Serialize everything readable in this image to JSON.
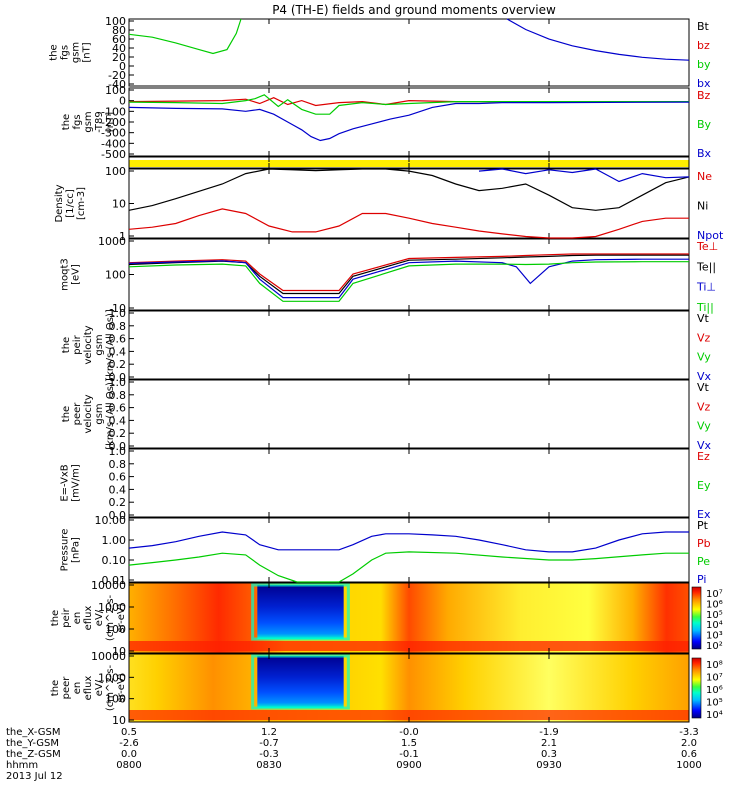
{
  "title": "P4 (TH-E) fields and ground moments overview",
  "colors": {
    "black": "#000000",
    "red": "#dd0000",
    "green": "#00cc00",
    "blue": "#0000cc",
    "yellow": "#ffee00"
  },
  "x_axis": {
    "labels": [
      "the_X-GSM",
      "the_Y-GSM",
      "the_Z-GSM",
      "hhmm"
    ],
    "date": "2013 Jul 12",
    "ticks": [
      {
        "t": 0,
        "x": "0.5",
        "y": "-2.6",
        "z": "0.0",
        "hhmm": "0800"
      },
      {
        "t": 30,
        "x": "1.2",
        "y": "-0.7",
        "z": "-0.3",
        "hhmm": "0830"
      },
      {
        "t": 60,
        "x": "-0.0",
        "y": "1.5",
        "z": "-0.1",
        "hhmm": "0900"
      },
      {
        "t": 90,
        "x": "-1.9",
        "y": "2.1",
        "z": "0.3",
        "hhmm": "0930"
      },
      {
        "t": 120,
        "x": "-3.3",
        "y": "2.0",
        "z": "0.6",
        "hhmm": "1000"
      }
    ]
  },
  "panels": [
    {
      "id": "fgs",
      "ylabel": [
        "the",
        "fgs",
        "gsm",
        "[nT]"
      ],
      "ticks": [
        "100",
        "80",
        "60",
        "40",
        "20",
        "0",
        "-20",
        "-40"
      ],
      "legend": [
        {
          "text": "Bt",
          "color": "black"
        },
        {
          "text": "bz",
          "color": "red"
        },
        {
          "text": "by",
          "color": "green"
        },
        {
          "text": "bx",
          "color": "blue"
        }
      ]
    },
    {
      "id": "fgl",
      "ylabel": [
        "the",
        "fgs",
        "gsm",
        "-T89",
        "[nT]"
      ],
      "ticks": [
        "100",
        "0",
        "-100",
        "-200",
        "-300",
        "-400",
        "-500"
      ],
      "legend": [
        {
          "text": "Bz",
          "color": "red"
        },
        {
          "text": "By",
          "color": "green"
        },
        {
          "text": "Bx",
          "color": "blue"
        }
      ]
    },
    {
      "id": "bar",
      "ylabel": [],
      "ticks": [],
      "legend": []
    },
    {
      "id": "density",
      "ylabel": [
        "Density",
        "[1/cc]",
        "[cm-3]"
      ],
      "ticks": [
        "100",
        "10",
        "1"
      ],
      "legend": [
        {
          "text": "Ne",
          "color": "red"
        },
        {
          "text": "Ni",
          "color": "black"
        },
        {
          "text": "Npot",
          "color": "blue"
        }
      ]
    },
    {
      "id": "temp",
      "ylabel": [
        "moqt3",
        "[eV]"
      ],
      "ticks": [
        "1000",
        "100",
        "10"
      ],
      "legend": [
        {
          "text": "Te⊥",
          "color": "red"
        },
        {
          "text": "Te||",
          "color": "black"
        },
        {
          "text": "Ti⊥",
          "color": "blue"
        },
        {
          "text": "Ti||",
          "color": "green"
        }
      ]
    },
    {
      "id": "vpeir",
      "ylabel": [
        "the",
        "peir",
        "velocity",
        "gsm",
        "[km/s (All Qs)]"
      ],
      "ticks": [
        "1.0",
        "0.8",
        "0.6",
        "0.4",
        "0.2",
        "0.0"
      ],
      "legend": [
        {
          "text": "Vt",
          "color": "black"
        },
        {
          "text": "Vz",
          "color": "red"
        },
        {
          "text": "Vy",
          "color": "green"
        },
        {
          "text": "Vx",
          "color": "blue"
        }
      ]
    },
    {
      "id": "vpeer",
      "ylabel": [
        "the",
        "peer",
        "velocity",
        "gsm",
        "[km/s (All Qs)]"
      ],
      "ticks": [
        "1.0",
        "0.8",
        "0.6",
        "0.4",
        "0.2",
        "0.0"
      ],
      "legend": [
        {
          "text": "Vt",
          "color": "black"
        },
        {
          "text": "Vz",
          "color": "red"
        },
        {
          "text": "Vy",
          "color": "green"
        },
        {
          "text": "Vx",
          "color": "blue"
        }
      ]
    },
    {
      "id": "efield",
      "ylabel": [
        "E=-VxB",
        "[mV/m]"
      ],
      "ticks": [
        "1.0",
        "0.8",
        "0.6",
        "0.4",
        "0.2",
        "0.0"
      ],
      "legend": [
        {
          "text": "Ez",
          "color": "red"
        },
        {
          "text": "Ey",
          "color": "green"
        },
        {
          "text": "Ex",
          "color": "blue"
        }
      ]
    },
    {
      "id": "pressure",
      "ylabel": [
        "Pressure",
        "[nPa]"
      ],
      "ticks": [
        "10.00",
        "1.00",
        "0.10",
        "0.01"
      ],
      "legend": [
        {
          "text": "Pt",
          "color": "black"
        },
        {
          "text": "Pb",
          "color": "red"
        },
        {
          "text": "Pe",
          "color": "green"
        },
        {
          "text": "Pi",
          "color": "blue"
        }
      ]
    },
    {
      "id": "peir_spec",
      "ylabel": [
        "the",
        "peir",
        "en",
        "eflux",
        "eV/",
        "(cm^2-s-",
        "sr-eV)"
      ],
      "ticks": [
        "10000",
        "1000",
        "100",
        "10"
      ],
      "colorbar": [
        "10⁷",
        "10⁶",
        "10⁵",
        "10⁴",
        "10³",
        "10²"
      ]
    },
    {
      "id": "peer_spec",
      "ylabel": [
        "the",
        "peer",
        "en",
        "eflux",
        "eV/",
        "(cm^2-s-",
        "sr-eV)"
      ],
      "ticks": [
        "10000",
        "1000",
        "100",
        "10"
      ],
      "colorbar": [
        "10⁸",
        "10⁷",
        "10⁶",
        "10⁵",
        "10⁴"
      ]
    }
  ],
  "chart_data": {
    "type": "line",
    "title": "P4 (TH-E) fields and ground moments overview",
    "x_unit": "minutes after 0800 UT, 2013 Jul 12",
    "x_ticks": [
      "0800",
      "0830",
      "0900",
      "0930",
      "1000"
    ],
    "panels": {
      "fgs": {
        "ylim": [
          -40,
          100
        ],
        "series": [
          {
            "name": "by",
            "color": "green",
            "x": [
              0,
              5,
              10,
              15,
              18,
              21,
              23,
              24
            ],
            "y": [
              68,
              62,
              50,
              36,
              28,
              36,
              70,
              100
            ]
          },
          {
            "name": "bx",
            "color": "blue",
            "x": [
              81,
              85,
              90,
              95,
              100,
              105,
              110,
              115,
              120
            ],
            "y": [
              100,
              78,
              58,
              44,
              34,
              26,
              20,
              16,
              14
            ]
          }
        ]
      },
      "fgl": {
        "ylim": [
          -560,
          140
        ],
        "series": [
          {
            "name": "Bz",
            "color": "red",
            "x": [
              0,
              10,
              20,
              25,
              28,
              31,
              34,
              37,
              40,
              45,
              50,
              55,
              60,
              70,
              90,
              120
            ],
            "y": [
              0,
              5,
              10,
              25,
              -20,
              40,
              -30,
              10,
              -40,
              -10,
              0,
              -30,
              10,
              0,
              0,
              0
            ]
          },
          {
            "name": "By",
            "color": "green",
            "x": [
              0,
              10,
              20,
              25,
              27,
              29,
              32,
              34,
              37,
              40,
              43,
              45,
              50,
              55,
              60,
              70,
              90,
              120
            ],
            "y": [
              -5,
              -10,
              -20,
              10,
              30,
              70,
              -50,
              20,
              -80,
              -130,
              -130,
              -40,
              -10,
              -30,
              -20,
              0,
              0,
              0
            ]
          },
          {
            "name": "Bx",
            "color": "blue",
            "x": [
              0,
              10,
              20,
              25,
              28,
              31,
              34,
              37,
              39,
              41,
              43,
              45,
              48,
              52,
              56,
              60,
              65,
              70,
              75,
              80,
              90,
              120
            ],
            "y": [
              -60,
              -70,
              -75,
              -100,
              -80,
              -130,
              -210,
              -290,
              -360,
              -400,
              -380,
              -330,
              -280,
              -230,
              -180,
              -140,
              -60,
              -20,
              -20,
              -10,
              -10,
              -5
            ]
          }
        ]
      },
      "density": {
        "ylim_log": [
          0.7,
          300
        ],
        "series": [
          {
            "name": "Ni",
            "color": "black",
            "x": [
              0,
              5,
              10,
              20,
              25,
              30,
              35,
              40,
              45,
              50,
              55,
              60,
              65,
              70,
              75,
              80,
              85,
              90,
              95,
              100,
              105,
              110,
              115,
              120
            ],
            "y": [
              8,
              12,
              22,
              80,
              200,
              300,
              280,
              260,
              280,
              300,
              300,
              250,
              170,
              80,
              45,
              55,
              80,
              30,
              10,
              8,
              10,
              30,
              90,
              150
            ]
          },
          {
            "name": "Ne",
            "color": "red",
            "x": [
              0,
              5,
              10,
              15,
              20,
              25,
              30,
              35,
              40,
              45,
              50,
              55,
              60,
              65,
              70,
              75,
              80,
              85,
              90,
              95,
              100,
              105,
              110,
              115,
              120
            ],
            "y": [
              1.5,
              1.8,
              2.5,
              5,
              9,
              6,
              2,
              1.2,
              1.2,
              2,
              6,
              6,
              4,
              2.5,
              1.8,
              1.3,
              1.0,
              0.8,
              0.7,
              0.7,
              0.8,
              1.5,
              3,
              4,
              4
            ]
          },
          {
            "name": "Npot",
            "color": "blue",
            "x": [
              75,
              80,
              85,
              90,
              95,
              100,
              105,
              110,
              115,
              120
            ],
            "y": [
              250,
              300,
              200,
              280,
              220,
              300,
              100,
              200,
              140,
              150
            ]
          }
        ]
      },
      "temp": {
        "ylim_log": [
          3,
          3000
        ],
        "series": [
          {
            "name": "Te⊥",
            "color": "red",
            "x": [
              0,
              10,
              20,
              25,
              28,
              33,
              40,
              45,
              48,
              60,
              70,
              80,
              85,
              90,
              95,
              100,
              110,
              120
            ],
            "y": [
              300,
              350,
              400,
              350,
              100,
              20,
              20,
              20,
              100,
              450,
              500,
              550,
              600,
              650,
              700,
              700,
              700,
              700
            ]
          },
          {
            "name": "Te||",
            "color": "black",
            "x": [
              0,
              10,
              20,
              25,
              28,
              33,
              40,
              45,
              48,
              60,
              70,
              80,
              85,
              90,
              95,
              100,
              110,
              120
            ],
            "y": [
              250,
              300,
              350,
              300,
              80,
              15,
              15,
              15,
              80,
              380,
              420,
              480,
              520,
              550,
              600,
              620,
              620,
              620
            ]
          },
          {
            "name": "Ti⊥",
            "color": "blue",
            "x": [
              0,
              10,
              20,
              25,
              28,
              33,
              40,
              45,
              48,
              60,
              70,
              80,
              83,
              86,
              90,
              95,
              100,
              110,
              120
            ],
            "y": [
              280,
              320,
              360,
              300,
              60,
              10,
              10,
              10,
              60,
              300,
              350,
              300,
              200,
              40,
              200,
              350,
              400,
              420,
              420
            ]
          },
          {
            "name": "Ti||",
            "color": "green",
            "x": [
              0,
              10,
              20,
              25,
              28,
              33,
              40,
              45,
              48,
              60,
              70,
              80,
              85,
              90,
              95,
              100,
              110,
              120
            ],
            "y": [
              200,
              240,
              260,
              220,
              40,
              7,
              7,
              7,
              40,
              220,
              260,
              260,
              250,
              260,
              300,
              320,
              330,
              330
            ]
          }
        ]
      },
      "pressure": {
        "ylim_log": [
          0.005,
          30
        ],
        "series": [
          {
            "name": "Pi",
            "color": "blue",
            "x": [
              0,
              5,
              10,
              15,
              20,
              25,
              28,
              32,
              40,
              45,
              48,
              52,
              55,
              60,
              65,
              70,
              75,
              80,
              85,
              90,
              95,
              100,
              105,
              110,
              115,
              120
            ],
            "y": [
              0.5,
              0.7,
              1.2,
              2.5,
              4.5,
              3,
              0.8,
              0.4,
              0.4,
              0.4,
              0.8,
              2.5,
              3.5,
              3.5,
              3,
              2.5,
              1.5,
              0.8,
              0.4,
              0.3,
              0.3,
              0.5,
              1.5,
              3.5,
              4.5,
              4.5
            ]
          },
          {
            "name": "Pe",
            "color": "green",
            "x": [
              0,
              5,
              10,
              15,
              20,
              25,
              28,
              32,
              36,
              40,
              45,
              48,
              52,
              55,
              60,
              70,
              80,
              90,
              95,
              100,
              110,
              115,
              120
            ],
            "y": [
              0.05,
              0.07,
              0.1,
              0.15,
              0.25,
              0.2,
              0.05,
              0.012,
              0.005,
              0.005,
              0.005,
              0.015,
              0.1,
              0.25,
              0.3,
              0.25,
              0.15,
              0.1,
              0.1,
              0.12,
              0.2,
              0.25,
              0.25
            ]
          }
        ]
      },
      "peir_spec": {
        "ylim_log": [
          5,
          20000
        ],
        "colorbar_range_log10": [
          2,
          7
        ]
      },
      "peer_spec": {
        "ylim_log": [
          5,
          20000
        ],
        "colorbar_range_log10": [
          4,
          8
        ]
      }
    }
  }
}
